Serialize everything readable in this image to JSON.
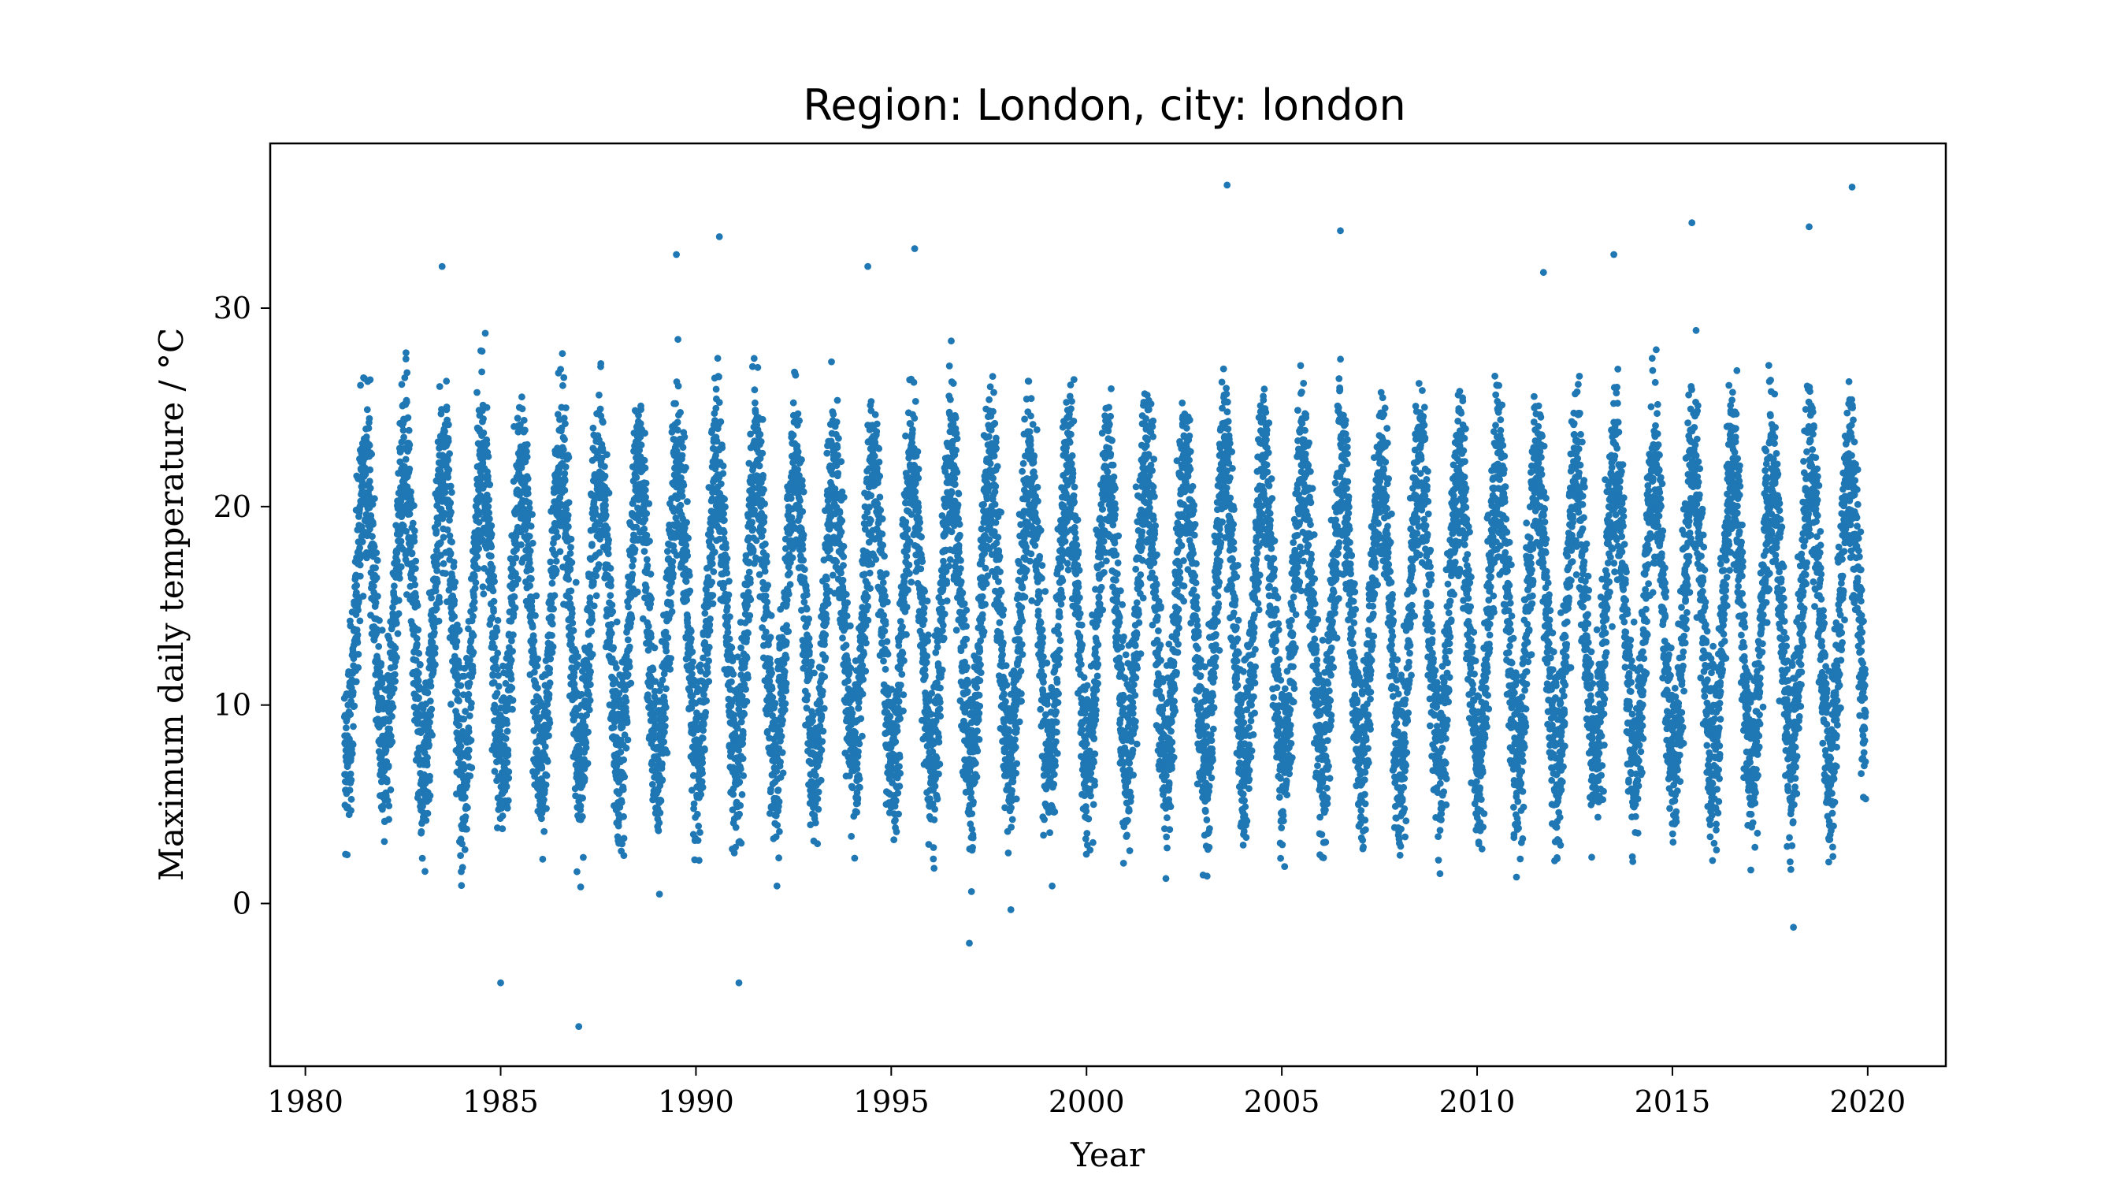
{
  "chart_data": {
    "type": "scatter",
    "title": "Region: London, city: london",
    "xlabel": "Year",
    "ylabel": "Maximum daily temperature / °C",
    "xlim": [
      1979.1,
      2022.0
    ],
    "ylim": [
      -8.2,
      38.3
    ],
    "xticks": [
      1980,
      1985,
      1990,
      1995,
      2000,
      2005,
      2010,
      2015,
      2020
    ],
    "xtick_labels": [
      "1980",
      "1985",
      "1990",
      "1995",
      "2000",
      "2005",
      "2010",
      "2015",
      "2020"
    ],
    "yticks": [
      0,
      10,
      20,
      30
    ],
    "ytick_labels": [
      "0",
      "10",
      "20",
      "30"
    ],
    "grid": false,
    "legend": "none",
    "marker_color": "#1f77b4",
    "series": [
      {
        "x_start": 1981.0,
        "x_end": 2019.95,
        "points_per_year": 365,
        "seasonal_min_typical": 7,
        "seasonal_max_typical": 22,
        "noise_note": "daily observations scattered about a seasonal cycle",
        "extremes": [
          {
            "x": 1983.5,
            "y": 32.1
          },
          {
            "x": 1985.0,
            "y": -4.0
          },
          {
            "x": 1987.0,
            "y": -6.2
          },
          {
            "x": 1989.5,
            "y": 32.7
          },
          {
            "x": 1990.6,
            "y": 33.6
          },
          {
            "x": 1991.1,
            "y": -4.0
          },
          {
            "x": 1994.4,
            "y": 32.1
          },
          {
            "x": 1995.6,
            "y": 33.0
          },
          {
            "x": 1997.0,
            "y": -2.0
          },
          {
            "x": 2003.6,
            "y": 36.2
          },
          {
            "x": 2006.5,
            "y": 33.9
          },
          {
            "x": 2011.7,
            "y": 31.8
          },
          {
            "x": 2013.5,
            "y": 32.7
          },
          {
            "x": 2015.5,
            "y": 34.3
          },
          {
            "x": 2018.1,
            "y": -1.2
          },
          {
            "x": 2018.5,
            "y": 34.1
          },
          {
            "x": 2019.6,
            "y": 36.1
          }
        ]
      }
    ]
  }
}
